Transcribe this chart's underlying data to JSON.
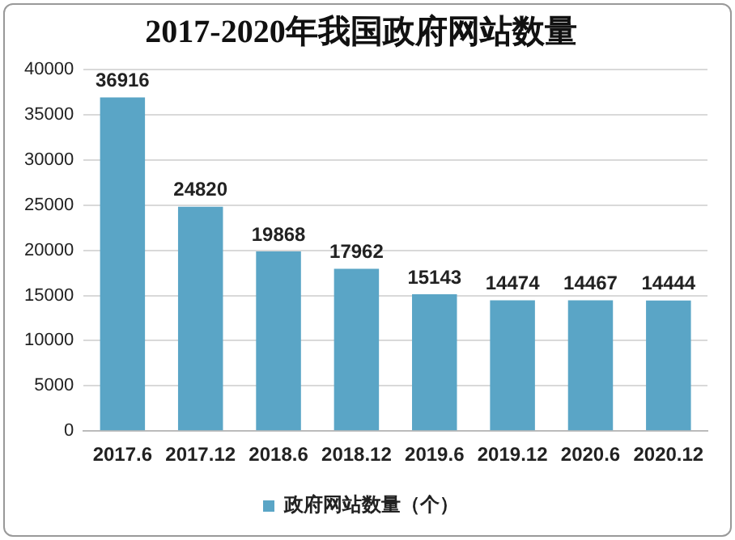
{
  "chart_data": {
    "type": "bar",
    "title": "2017-2020年我国政府网站数量",
    "categories": [
      "2017.6",
      "2017.12",
      "2018.6",
      "2018.12",
      "2019.6",
      "2019.12",
      "2020.6",
      "2020.12"
    ],
    "series": [
      {
        "name": "政府网站数量（个）",
        "color": "#5aa5c6",
        "values": [
          36916,
          24820,
          19868,
          17962,
          15143,
          14474,
          14467,
          14444
        ]
      }
    ],
    "ylim": [
      0,
      40000
    ],
    "yticks": [
      0,
      5000,
      10000,
      15000,
      20000,
      25000,
      30000,
      35000,
      40000
    ],
    "grid": "y",
    "legend": "bottom",
    "data_labels": true
  }
}
